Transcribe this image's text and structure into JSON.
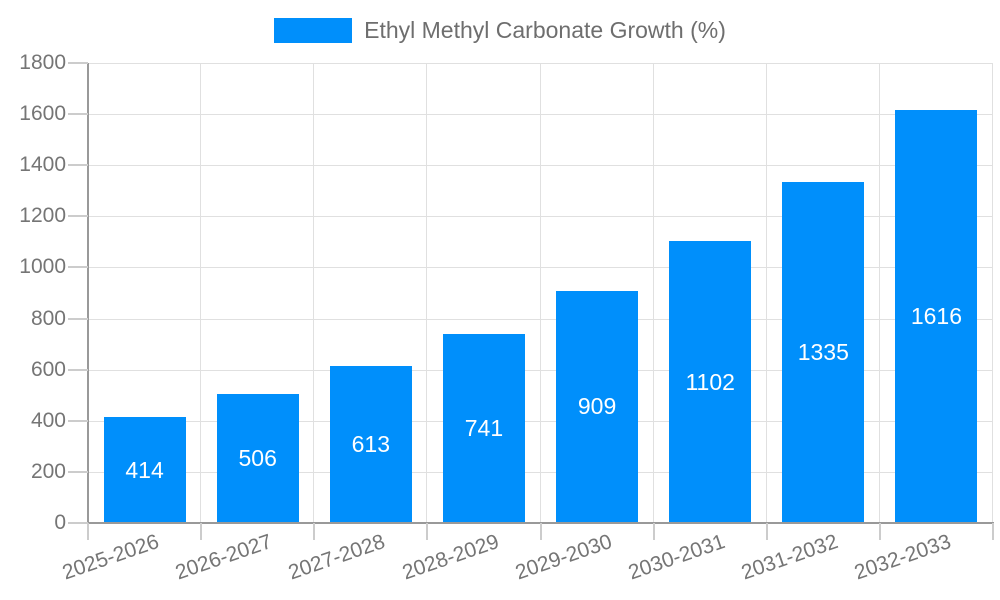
{
  "chart_data": {
    "type": "bar",
    "title": "",
    "categories": [
      "2025-2026",
      "2026-2027",
      "2027-2028",
      "2028-2029",
      "2029-2030",
      "2030-2031",
      "2031-2032",
      "2032-2033"
    ],
    "series": [
      {
        "name": "Ethyl Methyl Carbonate Growth (%)",
        "values": [
          414,
          506,
          613,
          741,
          909,
          1102,
          1335,
          1616
        ]
      }
    ],
    "xlabel": "",
    "ylabel": "",
    "ylim": [
      0,
      1800
    ],
    "ytick_step": 200,
    "ytick_labels": [
      "0",
      "200",
      "400",
      "600",
      "800",
      "1000",
      "1200",
      "1400",
      "1600",
      "1800"
    ],
    "grid": "on",
    "legend_position": "top-center",
    "value_labels_position": "inside-center",
    "x_label_rotation_deg": -19,
    "bar_color": "#008FFB",
    "value_label_color": "#FFFFFF",
    "axis_text_color": "#757575",
    "legend_text_color": "#6E6E6E",
    "gridline_color": "#E0E0E0",
    "tick_color": "#CCCCCC",
    "axis_line_color": "#999999",
    "background_color": "#FFFFFF"
  }
}
